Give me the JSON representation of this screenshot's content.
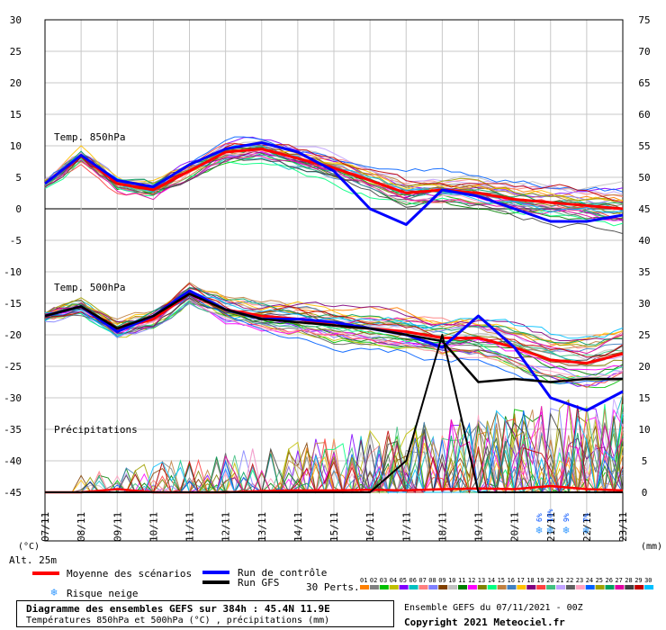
{
  "chart_data": {
    "type": "line",
    "x": [
      "07/11",
      "08/11",
      "09/11",
      "10/11",
      "11/11",
      "12/11",
      "13/11",
      "14/11",
      "15/11",
      "16/11",
      "17/11",
      "18/11",
      "19/11",
      "20/11",
      "21/11",
      "22/11",
      "23/11"
    ],
    "left_axis": {
      "label": "(°C)",
      "ticks": [
        30,
        25,
        20,
        15,
        10,
        5,
        0,
        -5,
        -10,
        -15,
        -20,
        -25,
        -30,
        -35,
        -40,
        -45
      ],
      "ylim": [
        -45,
        30
      ]
    },
    "right_axis": {
      "label": "(mm)",
      "ticks": [
        75,
        70,
        65,
        60,
        55,
        50,
        45,
        40,
        35,
        30,
        25,
        20,
        15,
        10,
        5,
        0
      ],
      "ylim": [
        0,
        75
      ]
    },
    "panels": {
      "t850": {
        "label": "Temp. 850hPa"
      },
      "t500": {
        "label": "Temp. 500hPa"
      },
      "precip": {
        "label": "Précipitations"
      }
    },
    "series": [
      {
        "name": "Moyenne des scénarios (850hPa)",
        "color": "#ff0000",
        "values": [
          4,
          8.5,
          4,
          3,
          6,
          9,
          9.5,
          8,
          6.5,
          4.5,
          2.5,
          3,
          2.5,
          1.5,
          1,
          0.5,
          0
        ]
      },
      {
        "name": "Run de contrôle (850hPa)",
        "color": "#0000ff",
        "values": [
          4,
          8.5,
          4.5,
          3.5,
          7,
          9.5,
          10.5,
          9,
          6,
          0,
          -2.5,
          3,
          2,
          0,
          -2,
          -2,
          -1
        ]
      },
      {
        "name": "Moyenne des scénarios (500hPa)",
        "color": "#ff0000",
        "values": [
          -17,
          -15.5,
          -19,
          -17.5,
          -13.5,
          -16,
          -17,
          -17.5,
          -18.5,
          -19,
          -19.5,
          -20.5,
          -20.5,
          -22,
          -24,
          -24.5,
          -23
        ]
      },
      {
        "name": "Run de contrôle (500hPa)",
        "color": "#0000ff",
        "values": [
          -17,
          -15.5,
          -19.5,
          -17,
          -13,
          -16,
          -17.5,
          -17.5,
          -18,
          -19,
          -20,
          -22,
          -17,
          -22,
          -30,
          -32,
          -29
        ]
      },
      {
        "name": "Run GFS (500hPa)",
        "color": "#000000",
        "values": [
          -17,
          -15.5,
          -19,
          -17,
          -13.5,
          -16,
          -17.5,
          -18,
          -18.5,
          -19,
          -20,
          -21,
          -27.5,
          -27,
          -27.5,
          -27,
          -27
        ]
      },
      {
        "name": "Moyenne précipitations (mm)",
        "color": "#ff0000",
        "values": [
          0,
          0,
          0.5,
          0,
          0,
          0,
          0.2,
          0.3,
          0.3,
          0.4,
          0.3,
          0.5,
          0.6,
          0.5,
          1,
          0.5,
          0.3
        ]
      },
      {
        "name": "Run GFS précipitations (mm)",
        "color": "#000000",
        "values": [
          0,
          0,
          0,
          0,
          0,
          0,
          0,
          0,
          0,
          0,
          5,
          25,
          0,
          0,
          0,
          0,
          0
        ]
      }
    ],
    "snow_risk": [
      {
        "x": "21/11",
        "label": "6%"
      },
      {
        "x": "21/11",
        "label": "10%"
      },
      {
        "x": "21/11",
        "label": "9%"
      },
      {
        "x": "22/11",
        "label": "7%"
      }
    ],
    "legend": {
      "mean": "Moyenne des scénarios",
      "control": "Run de contrôle",
      "gfs": "Run GFS",
      "snow": "Risque neige",
      "perts": "30 Perts.",
      "pert_numbers": [
        "01",
        "02",
        "03",
        "04",
        "05",
        "06",
        "07",
        "08",
        "09",
        "10",
        "11",
        "12",
        "13",
        "14",
        "15",
        "16",
        "17",
        "18",
        "19",
        "20",
        "21",
        "22",
        "23",
        "24",
        "25",
        "26",
        "27",
        "28",
        "29",
        "30"
      ],
      "pert_colors": [
        "#ff8000",
        "#808080",
        "#00c000",
        "#c0c000",
        "#8000ff",
        "#00c0c0",
        "#ff8080",
        "#8080ff",
        "#804000",
        "#c0c0c0",
        "#008000",
        "#ff00ff",
        "#808000",
        "#00ff80",
        "#c08040",
        "#4080c0",
        "#ffc000",
        "#800080",
        "#ff4040",
        "#40c080",
        "#c0a0ff",
        "#606060",
        "#ffa0c0",
        "#0060ff",
        "#a0a000",
        "#00a060",
        "#e000a0",
        "#404040",
        "#c00000",
        "#00c0ff"
      ]
    },
    "alt_label": "Alt. 25m"
  },
  "footer": {
    "title": "Diagramme des ensembles GEFS sur 384h : 45.4N 11.9E",
    "subtitle": "Températures 850hPa et 500hPa (°C) , précipitations (mm)",
    "ensemble": "Ensemble GEFS du 07/11/2021 - 00Z",
    "copyright": "Copyright 2021 Meteociel.fr"
  }
}
